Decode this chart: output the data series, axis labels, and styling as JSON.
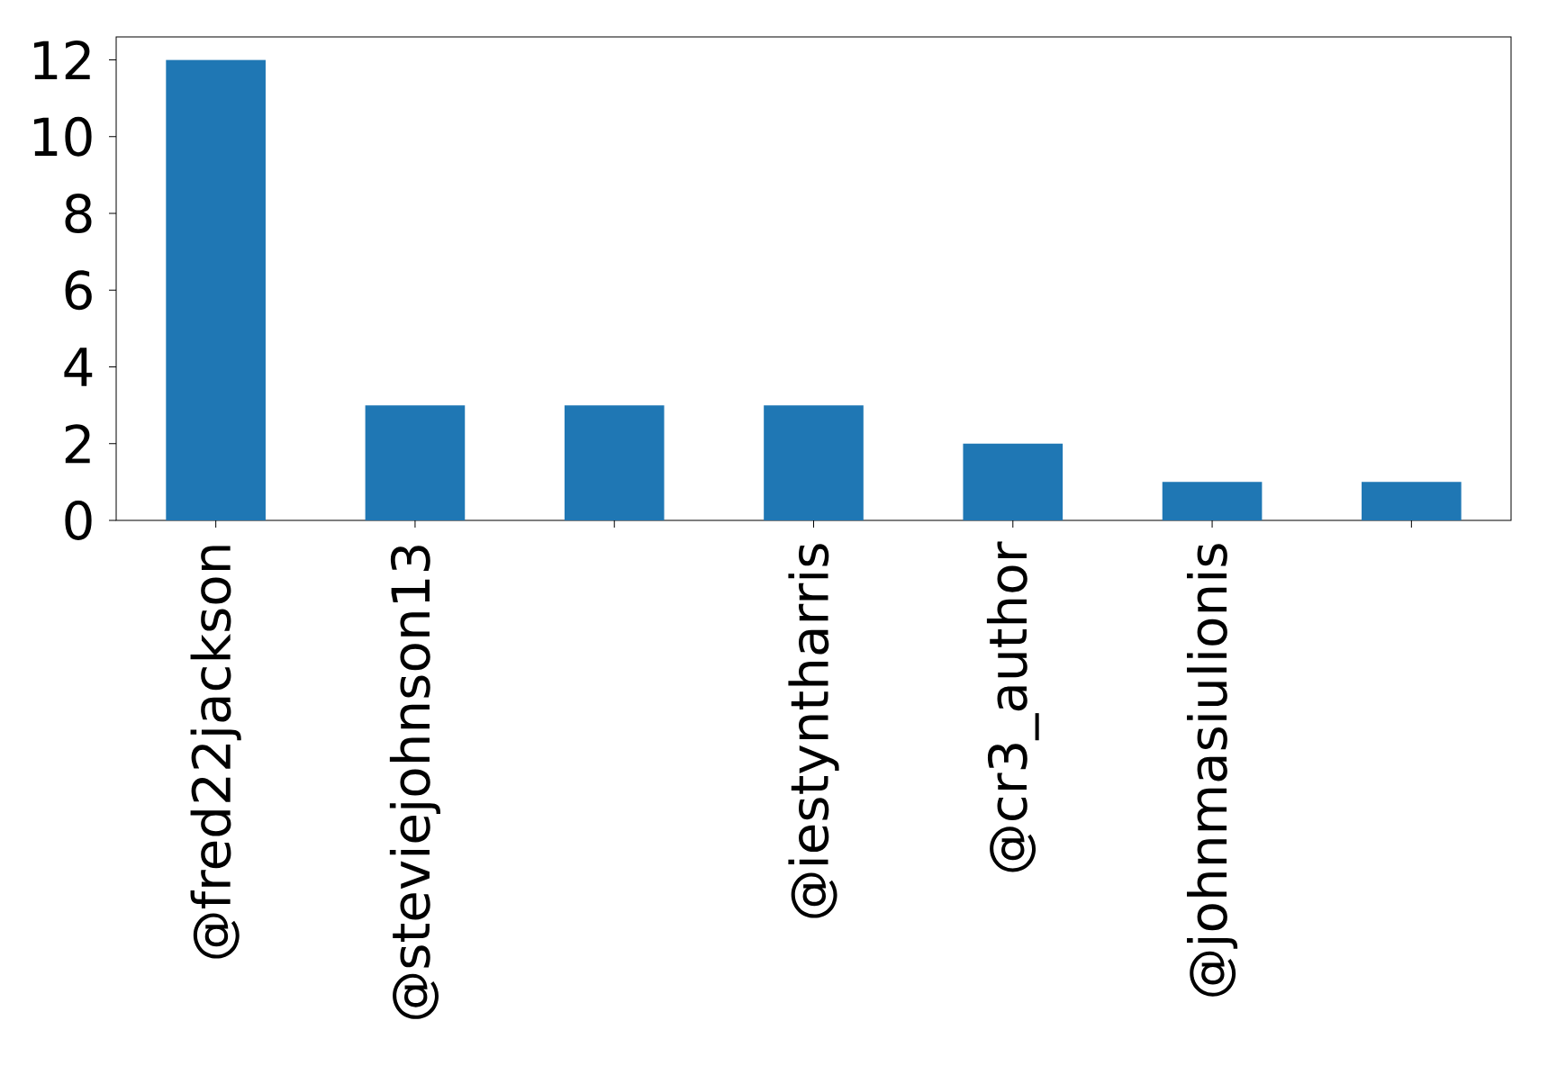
{
  "chart_data": {
    "type": "bar",
    "categories": [
      "@fred22jackson",
      "@steviejohnson13",
      null,
      "@iestyntharris",
      "@cr3_author",
      "@johnmasiulionis",
      null
    ],
    "values": [
      12,
      3,
      3,
      3,
      2,
      1,
      1
    ],
    "color": "#1f77b4",
    "ylim": [
      0,
      12.6
    ],
    "yticks": [
      0,
      2,
      4,
      6,
      8,
      10,
      12
    ],
    "grid": false
  }
}
